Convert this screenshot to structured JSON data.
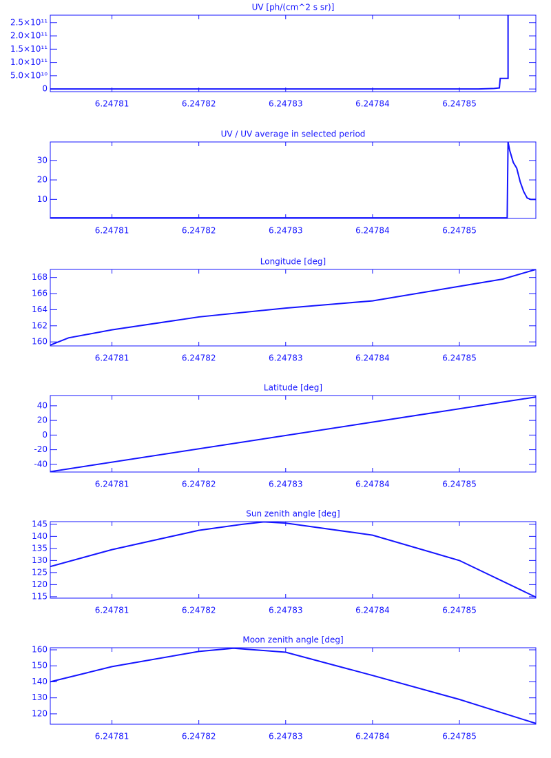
{
  "chart_data": [
    {
      "type": "line",
      "title": "UV [ph/(cm^2 s sr)]",
      "color": "#1414ff",
      "x": [
        6.2478029,
        6.2478522,
        6.247854,
        6.2478546,
        6.2478547,
        6.2478551,
        6.2478556,
        6.2478556
      ],
      "values": [
        0,
        0,
        2000000000,
        4000000000,
        40000000000,
        40000000000,
        40000000000,
        300000000000
      ],
      "xlim": [
        6.2478029,
        6.2478588
      ],
      "xticks": [
        6.24781,
        6.24782,
        6.24783,
        6.24784,
        6.24785
      ],
      "ylim": [
        -10000000000,
        278000000000
      ],
      "yticks": [
        0,
        {
          "value": 50000000000,
          "label": "5.0×10¹⁰"
        },
        {
          "value": 100000000000,
          "label": "1.0×10¹¹"
        },
        {
          "value": 150000000000,
          "label": "1.5×10¹¹"
        },
        {
          "value": 200000000000,
          "label": "2.0×10¹¹"
        },
        {
          "value": 250000000000,
          "label": "2.5×10¹¹"
        }
      ]
    },
    {
      "type": "line",
      "title": "UV / UV average in selected period",
      "color": "#1414ff",
      "x": [
        6.2478029,
        6.2478555,
        6.2478556,
        6.2478558,
        6.2478562,
        6.2478566,
        6.247857,
        6.2478574,
        6.2478578,
        6.2478582,
        6.2478588
      ],
      "values": [
        0.5,
        0.5,
        39.5,
        35,
        29,
        26,
        19,
        14,
        10.7,
        10,
        10
      ],
      "xlim": [
        6.2478029,
        6.2478588
      ],
      "xticks": [
        6.24781,
        6.24782,
        6.24783,
        6.24784,
        6.24785
      ],
      "ylim": [
        0.2,
        39.5
      ],
      "yticks": [
        10,
        20,
        30
      ]
    },
    {
      "type": "line",
      "title": "Longitude [deg]",
      "color": "#1414ff",
      "x": [
        6.2478029,
        6.247805,
        6.24781,
        6.24782,
        6.24783,
        6.24784,
        6.24785,
        6.247855,
        6.2478588
      ],
      "values": [
        159.6,
        160.5,
        161.5,
        163.1,
        164.2,
        165.1,
        166.9,
        167.8,
        169.0
      ],
      "xlim": [
        6.2478029,
        6.2478588
      ],
      "xticks": [
        6.24781,
        6.24782,
        6.24783,
        6.24784,
        6.24785
      ],
      "ylim": [
        159.5,
        169.0
      ],
      "yticks": [
        160,
        162,
        164,
        166,
        168
      ]
    },
    {
      "type": "line",
      "title": "Latitude [deg]",
      "color": "#1414ff",
      "x": [
        6.2478029,
        6.2478588
      ],
      "values": [
        -50,
        52
      ],
      "xlim": [
        6.2478029,
        6.2478588
      ],
      "xticks": [
        6.24781,
        6.24782,
        6.24783,
        6.24784,
        6.24785
      ],
      "ylim": [
        -50.5,
        54
      ],
      "yticks": [
        -40,
        -20,
        0,
        20,
        40
      ]
    },
    {
      "type": "line",
      "title": "Sun zenith angle [deg]",
      "color": "#1414ff",
      "x": [
        6.2478029,
        6.24781,
        6.24782,
        6.247825,
        6.2478275,
        6.24783,
        6.24784,
        6.24785,
        6.2478588
      ],
      "values": [
        127.5,
        134.5,
        142.5,
        145,
        146,
        145.5,
        140.5,
        130,
        114.8
      ],
      "xlim": [
        6.2478029,
        6.2478588
      ],
      "xticks": [
        6.24781,
        6.24782,
        6.24783,
        6.24784,
        6.24785
      ],
      "ylim": [
        114.4,
        146.1
      ],
      "yticks": [
        115,
        120,
        125,
        130,
        135,
        140,
        145
      ]
    },
    {
      "type": "line",
      "title": "Moon zenith angle [deg]",
      "color": "#1414ff",
      "x": [
        6.2478029,
        6.24781,
        6.24782,
        6.247824,
        6.24783,
        6.24784,
        6.24785,
        6.2478588
      ],
      "values": [
        140,
        149.5,
        159,
        161,
        158.5,
        144,
        129,
        114
      ],
      "xlim": [
        6.2478029,
        6.2478588
      ],
      "xticks": [
        6.24781,
        6.24782,
        6.24783,
        6.24784,
        6.24785
      ],
      "ylim": [
        113.5,
        161.3
      ],
      "yticks": [
        120,
        130,
        140,
        150,
        160
      ]
    }
  ]
}
